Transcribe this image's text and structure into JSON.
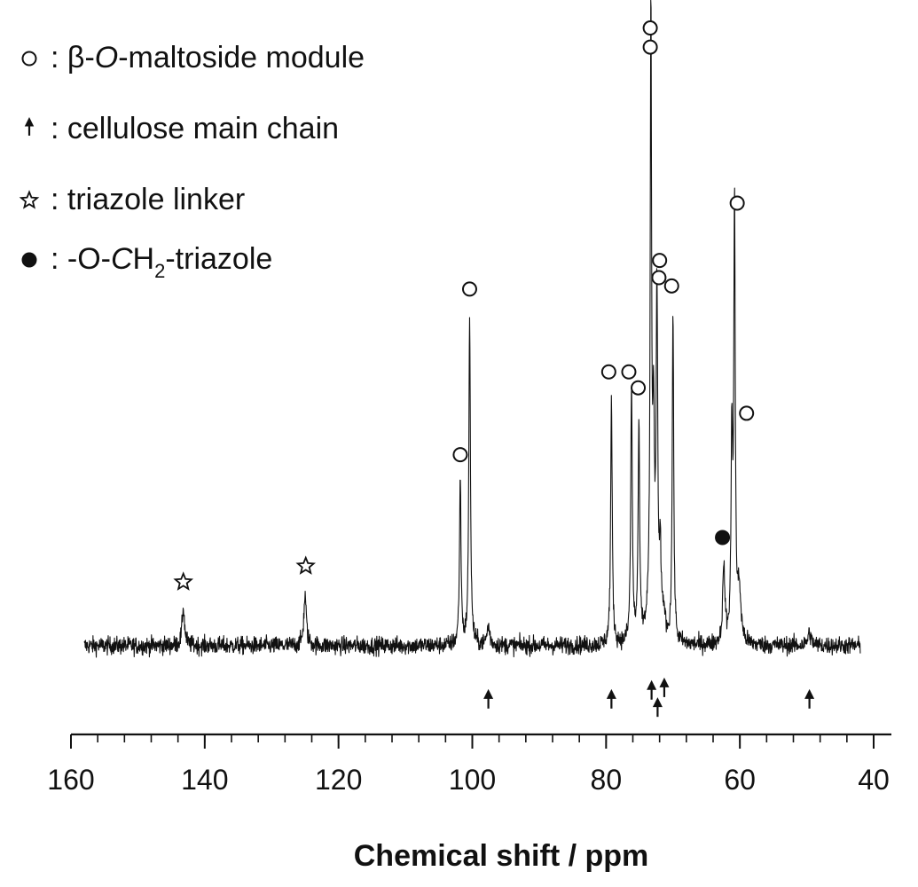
{
  "chart_data": {
    "type": "line",
    "title": "",
    "xlabel": "Chemical shift / ppm",
    "ylabel": "",
    "x_reversed": true,
    "xlim": [
      160,
      40
    ],
    "x_major_ticks": [
      160,
      140,
      120,
      100,
      80,
      60,
      40
    ],
    "x_tick_labels": [
      "160",
      "140",
      "120",
      "100",
      "80",
      "60",
      "40"
    ],
    "x_minor_step": 4,
    "grid": false,
    "legend_position": "top-left",
    "legend": [
      {
        "symbol": "open-circle",
        "parts": [
          {
            "text": ": β-",
            "style": "normal"
          },
          {
            "text": "O",
            "style": "italic"
          },
          {
            "text": "-maltoside module",
            "style": "normal"
          }
        ]
      },
      {
        "symbol": "arrow",
        "parts": [
          {
            "text": ": cellulose main chain",
            "style": "normal"
          }
        ]
      },
      {
        "symbol": "open-star",
        "parts": [
          {
            "text": ": triazole linker",
            "style": "normal"
          }
        ]
      },
      {
        "symbol": "filled-circle",
        "parts": [
          {
            "text": ": -O-",
            "style": "normal"
          },
          {
            "text": "C",
            "style": "italic"
          },
          {
            "text": "H",
            "style": "normal"
          },
          {
            "text": "2",
            "style": "sub"
          },
          {
            "text": "-triazole",
            "style": "normal"
          }
        ]
      }
    ],
    "baseline": 0,
    "y_range": [
      -6,
      100
    ],
    "spectrum_x_range": [
      158,
      42
    ],
    "noise_amplitude": 1.1,
    "peaks": [
      {
        "x": 143.2,
        "h": 6,
        "w": 0.22
      },
      {
        "x": 125.0,
        "h": 8,
        "w": 0.22
      },
      {
        "x": 101.8,
        "h": 26,
        "w": 0.14
      },
      {
        "x": 100.4,
        "h": 52,
        "w": 0.14
      },
      {
        "x": 97.6,
        "h": 3,
        "w": 0.25
      },
      {
        "x": 79.2,
        "h": 38,
        "w": 0.14
      },
      {
        "x": 76.2,
        "h": 40,
        "w": 0.14
      },
      {
        "x": 75.1,
        "h": 33,
        "w": 0.14
      },
      {
        "x": 73.4,
        "h": 4,
        "w": 0.6
      },
      {
        "x": 73.3,
        "h": 94,
        "w": 0.12
      },
      {
        "x": 72.9,
        "h": 30,
        "w": 0.14
      },
      {
        "x": 72.4,
        "h": 54,
        "w": 0.14
      },
      {
        "x": 71.9,
        "h": 12,
        "w": 0.14
      },
      {
        "x": 71.4,
        "h": 4,
        "w": 0.3
      },
      {
        "x": 70.0,
        "h": 52,
        "w": 0.13
      },
      {
        "x": 62.4,
        "h": 12,
        "w": 0.2
      },
      {
        "x": 61.2,
        "h": 31,
        "w": 0.14
      },
      {
        "x": 60.8,
        "h": 68,
        "w": 0.13
      },
      {
        "x": 60.1,
        "h": 8,
        "w": 0.3
      },
      {
        "x": 49.6,
        "h": 2,
        "w": 0.3
      }
    ],
    "annotations": [
      {
        "symbol": "open-star",
        "x": 143.2,
        "y": 10
      },
      {
        "symbol": "open-star",
        "x": 124.9,
        "y": 12.5
      },
      {
        "symbol": "open-circle",
        "x": 101.8,
        "y": 30
      },
      {
        "symbol": "open-circle",
        "x": 100.4,
        "y": 56
      },
      {
        "symbol": "open-circle",
        "x": 79.6,
        "y": 43
      },
      {
        "symbol": "open-circle",
        "x": 76.6,
        "y": 43
      },
      {
        "symbol": "open-circle",
        "x": 75.2,
        "y": 40.5
      },
      {
        "symbol": "open-circle",
        "x": 73.4,
        "y": 97
      },
      {
        "symbol": "open-circle",
        "x": 73.4,
        "y": 94
      },
      {
        "symbol": "open-circle",
        "x": 72.0,
        "y": 60.5
      },
      {
        "symbol": "open-circle",
        "x": 72.1,
        "y": 57.8
      },
      {
        "symbol": "open-circle",
        "x": 70.2,
        "y": 56.5
      },
      {
        "symbol": "open-circle",
        "x": 60.4,
        "y": 69.5
      },
      {
        "symbol": "open-circle",
        "x": 59.0,
        "y": 36.5
      },
      {
        "symbol": "filled-circle",
        "x": 62.6,
        "y": 17
      },
      {
        "symbol": "arrow",
        "x": 97.6,
        "y": -6.8
      },
      {
        "symbol": "arrow",
        "x": 79.2,
        "y": -6.8
      },
      {
        "symbol": "arrow",
        "x": 73.2,
        "y": -5.4
      },
      {
        "symbol": "arrow",
        "x": 71.3,
        "y": -5.0
      },
      {
        "symbol": "arrow",
        "x": 72.3,
        "y": -8.1
      },
      {
        "symbol": "arrow",
        "x": 49.6,
        "y": -6.8
      }
    ]
  }
}
